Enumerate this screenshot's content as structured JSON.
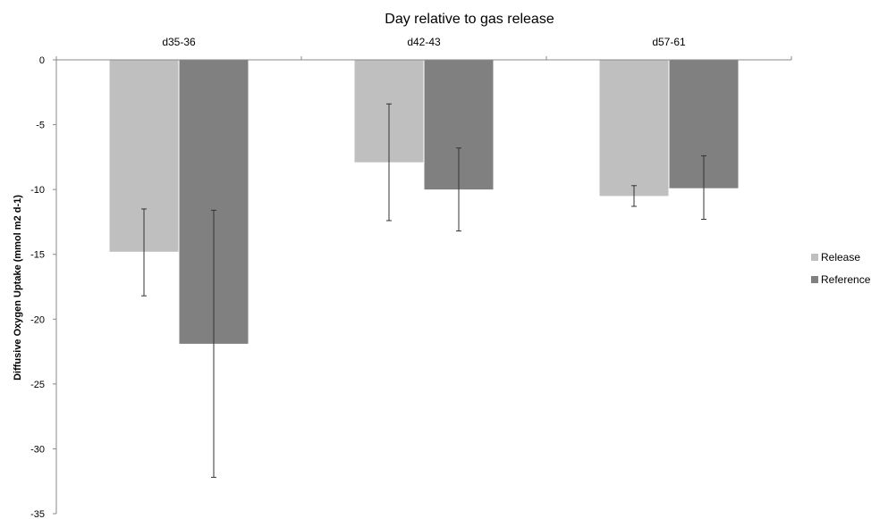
{
  "chart_data": {
    "type": "bar",
    "title": "Day relative to gas release",
    "xlabel": "",
    "ylabel": "Diffusive Oxygen Uptake (mmol m2 d-1)",
    "categories": [
      "d35-36",
      "d42-43",
      "d57-61"
    ],
    "ylim": [
      -35,
      0
    ],
    "yticks": [
      0,
      -5,
      -10,
      -15,
      -20,
      -25,
      -30,
      -35
    ],
    "grid": false,
    "legend_position": "right",
    "series": [
      {
        "name": "Release",
        "color": "#bfbfbf",
        "values": [
          -14.8,
          -7.9,
          -10.5
        ],
        "error_low": [
          -18.2,
          -12.4,
          -11.3
        ],
        "error_high": [
          -11.5,
          -3.4,
          -9.7
        ]
      },
      {
        "name": "Reference",
        "color": "#808080",
        "values": [
          -21.9,
          -10.0,
          -9.9
        ],
        "error_low": [
          -32.2,
          -13.2,
          -12.3
        ],
        "error_high": [
          -11.6,
          -6.8,
          -7.4
        ]
      }
    ]
  }
}
